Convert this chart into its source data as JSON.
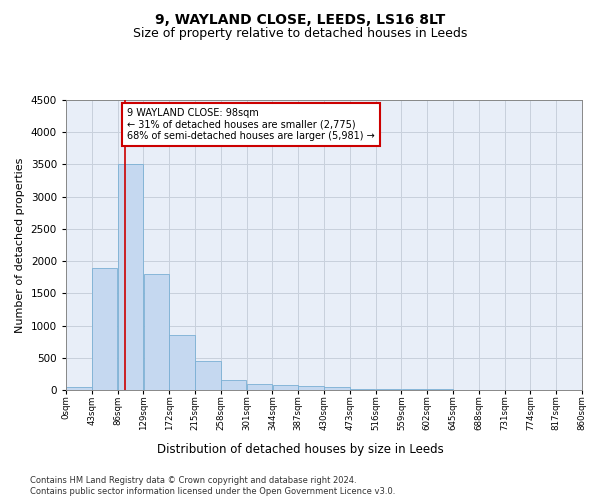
{
  "title": "9, WAYLAND CLOSE, LEEDS, LS16 8LT",
  "subtitle": "Size of property relative to detached houses in Leeds",
  "xlabel": "Distribution of detached houses by size in Leeds",
  "ylabel": "Number of detached properties",
  "bin_edges": [
    0,
    43,
    86,
    129,
    172,
    215,
    258,
    301,
    344,
    387,
    430,
    473,
    516,
    559,
    602,
    645,
    688,
    731,
    774,
    817,
    860
  ],
  "bar_heights": [
    50,
    1900,
    3500,
    1800,
    850,
    450,
    160,
    100,
    70,
    55,
    40,
    20,
    15,
    10,
    8,
    6,
    5,
    4,
    3,
    3
  ],
  "bar_color": "#c5d8f0",
  "bar_edgecolor": "#7aafd4",
  "vline_x": 98,
  "vline_color": "#cc0000",
  "ylim": [
    0,
    4500
  ],
  "annotation_text": "9 WAYLAND CLOSE: 98sqm\n← 31% of detached houses are smaller (2,775)\n68% of semi-detached houses are larger (5,981) →",
  "annotation_box_color": "#ffffff",
  "annotation_box_edgecolor": "#cc0000",
  "footer_line1": "Contains HM Land Registry data © Crown copyright and database right 2024.",
  "footer_line2": "Contains public sector information licensed under the Open Government Licence v3.0.",
  "title_fontsize": 10,
  "subtitle_fontsize": 9,
  "tick_labels": [
    "0sqm",
    "43sqm",
    "86sqm",
    "129sqm",
    "172sqm",
    "215sqm",
    "258sqm",
    "301sqm",
    "344sqm",
    "387sqm",
    "430sqm",
    "473sqm",
    "516sqm",
    "559sqm",
    "602sqm",
    "645sqm",
    "688sqm",
    "731sqm",
    "774sqm",
    "817sqm",
    "860sqm"
  ],
  "background_color": "#ffffff",
  "grid_color": "#c8d0dc",
  "ax_background": "#e8eef8"
}
